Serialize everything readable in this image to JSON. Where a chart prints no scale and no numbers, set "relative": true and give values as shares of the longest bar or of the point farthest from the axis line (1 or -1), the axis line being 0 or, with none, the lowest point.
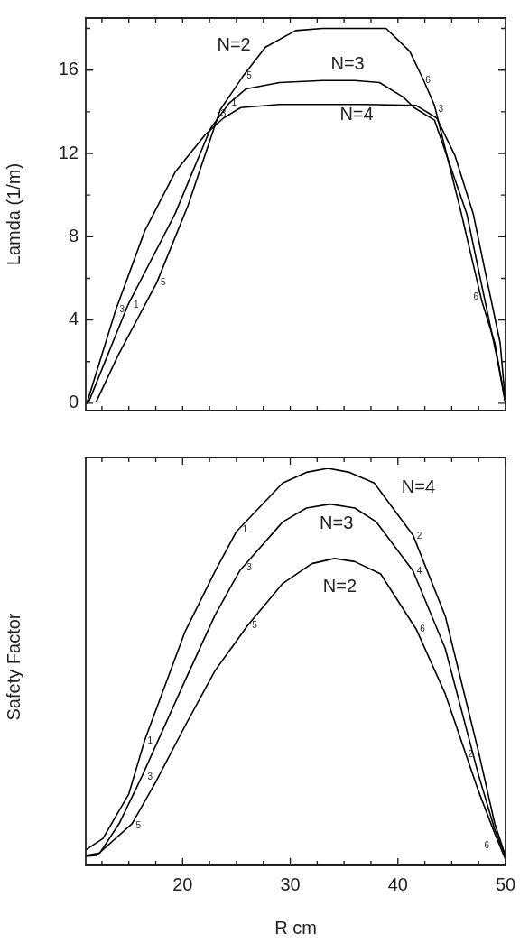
{
  "chart_data": [
    {
      "type": "line",
      "ylabel": "Lamda (1/m)",
      "xlim": [
        11,
        50
      ],
      "ylim": [
        -0.35,
        18.5
      ],
      "xticks": [
        {
          "value": 12.5,
          "label": null
        },
        {
          "value": 15,
          "label": null
        },
        {
          "value": 17.5,
          "label": null
        },
        {
          "value": 20,
          "label": null
        },
        {
          "value": 22.5,
          "label": null
        },
        {
          "value": 25,
          "label": null
        },
        {
          "value": 27.5,
          "label": null
        },
        {
          "value": 30,
          "label": null
        },
        {
          "value": 32.5,
          "label": null
        },
        {
          "value": 35,
          "label": null
        },
        {
          "value": 37.5,
          "label": null
        },
        {
          "value": 40,
          "label": null
        },
        {
          "value": 42.5,
          "label": null
        },
        {
          "value": 45,
          "label": null
        },
        {
          "value": 47.5,
          "label": null
        }
      ],
      "yticks": [
        0,
        {
          "value": 2,
          "label": null
        },
        4,
        {
          "value": 6,
          "label": null
        },
        8,
        {
          "value": 10,
          "label": null
        },
        12,
        {
          "value": 14,
          "label": null
        },
        16,
        {
          "value": 18,
          "label": null
        }
      ],
      "tick_labels": "y",
      "grid": false,
      "legend": false,
      "marker": "none",
      "line_style": "solid",
      "series": [
        {
          "name": "N=2",
          "color": "#000000",
          "x": [
            12,
            14,
            17.6,
            20.5,
            23.5,
            25.6,
            27.7,
            30.5,
            33,
            36,
            38.9,
            41.1,
            42.4,
            43.4,
            45.9,
            47.8,
            49,
            50
          ],
          "values": [
            0.1,
            2.3,
            5.8,
            9.5,
            14.1,
            15.7,
            17.1,
            17.9,
            18.0,
            18.0,
            18.0,
            16.9,
            15.5,
            14.3,
            9.1,
            4.9,
            2.9,
            0
          ]
        },
        {
          "name": "N=3",
          "color": "#000000",
          "x": [
            11.3,
            14.9,
            19.3,
            22.6,
            24.3,
            25.9,
            29,
            33,
            36,
            38.3,
            40.5,
            41.5,
            43.4,
            46.4,
            48.1,
            49.2,
            50
          ],
          "values": [
            0.1,
            4.7,
            9.1,
            13.2,
            14.4,
            15.1,
            15.4,
            15.5,
            15.5,
            15.4,
            14.7,
            14.2,
            13.6,
            9.1,
            4.9,
            2.2,
            0
          ]
        },
        {
          "name": "N=4",
          "color": "#000000",
          "x": [
            11.1,
            13.8,
            16.5,
            19.3,
            22.1,
            23.8,
            25.4,
            29,
            33,
            37,
            41.7,
            43.6,
            45.3,
            47,
            48.4,
            49.5,
            50
          ],
          "values": [
            0,
            4.5,
            8.3,
            11.1,
            12.9,
            13.7,
            14.2,
            14.35,
            14.35,
            14.35,
            14.3,
            13.7,
            11.9,
            9.1,
            5.6,
            2.9,
            0
          ]
        }
      ],
      "annotations": [
        {
          "text": "3",
          "x": 13.8,
          "y": 4.5
        },
        {
          "text": "1",
          "x": 15.1,
          "y": 4.7
        },
        {
          "text": "5",
          "x": 17.6,
          "y": 5.8
        },
        {
          "text": "3",
          "x": 23.2,
          "y": 13.9
        },
        {
          "text": "1",
          "x": 24.2,
          "y": 14.4
        },
        {
          "text": "5",
          "x": 25.6,
          "y": 15.7
        },
        {
          "text": "6",
          "x": 42.2,
          "y": 15.5
        },
        {
          "text": "3",
          "x": 43.4,
          "y": 14.1
        },
        {
          "text": "6",
          "x": 48.1,
          "y": 5.1
        }
      ]
    },
    {
      "type": "line",
      "ylabel": "Safety Factor",
      "xlabel": "R cm",
      "xlim": [
        11,
        50
      ],
      "relative": true,
      "xticks": [
        {
          "value": 12.5,
          "label": null
        },
        {
          "value": 15,
          "label": null
        },
        {
          "value": 17.5,
          "label": null
        },
        20,
        {
          "value": 22.5,
          "label": null
        },
        {
          "value": 25,
          "label": null
        },
        {
          "value": 27.5,
          "label": null
        },
        30,
        {
          "value": 32.5,
          "label": null
        },
        {
          "value": 35,
          "label": null
        },
        {
          "value": 37.5,
          "label": null
        },
        40,
        {
          "value": 42.5,
          "label": null
        },
        {
          "value": 45,
          "label": null
        },
        {
          "value": 47.5,
          "label": null
        },
        50
      ],
      "tick_labels": "x",
      "grid": false,
      "legend": false,
      "marker": "none",
      "line_style": "solid",
      "series": [
        {
          "name": "N=2",
          "color": "#000000",
          "x": [
            11,
            12,
            15.3,
            17.5,
            20.2,
            23,
            26,
            29.3,
            32,
            34.1,
            36,
            38.4,
            41.7,
            44.4,
            47.5,
            49,
            50
          ],
          "values": [
            0.023,
            0.025,
            0.105,
            0.21,
            0.35,
            0.49,
            0.603,
            0.71,
            0.76,
            0.773,
            0.765,
            0.734,
            0.595,
            0.432,
            0.186,
            0.08,
            0.015
          ]
        },
        {
          "name": "N=3",
          "color": "#000000",
          "x": [
            11,
            12.3,
            14.1,
            16.2,
            20.2,
            23,
            25.3,
            29.3,
            31.5,
            33.7,
            36,
            38,
            41.4,
            44.4,
            47.5,
            49,
            50
          ],
          "values": [
            0.025,
            0.031,
            0.105,
            0.223,
            0.464,
            0.63,
            0.742,
            0.865,
            0.9,
            0.91,
            0.9,
            0.865,
            0.742,
            0.546,
            0.227,
            0.09,
            0.023
          ]
        },
        {
          "name": "N=4",
          "color": "#000000",
          "x": [
            11,
            12.6,
            15,
            16.5,
            20.2,
            23,
            25,
            29.3,
            31.5,
            33.5,
            35.5,
            37.8,
            41.4,
            44.4,
            47.5,
            49,
            50
          ],
          "values": [
            0.039,
            0.068,
            0.18,
            0.317,
            0.587,
            0.74,
            0.841,
            0.963,
            0.99,
            1.0,
            0.99,
            0.963,
            0.832,
            0.628,
            0.285,
            0.105,
            0.023
          ]
        }
      ],
      "annotations": [
        {
          "text": "1",
          "x": 25.2,
          "y": 0.845
        },
        {
          "text": "3",
          "x": 25.6,
          "y": 0.75
        },
        {
          "text": "5",
          "x": 26.1,
          "y": 0.603
        },
        {
          "text": "2",
          "x": 41.4,
          "y": 0.83
        },
        {
          "text": "4",
          "x": 41.4,
          "y": 0.74
        },
        {
          "text": "6",
          "x": 41.7,
          "y": 0.595
        },
        {
          "text": "1",
          "x": 16.4,
          "y": 0.313
        },
        {
          "text": "3",
          "x": 16.4,
          "y": 0.223
        },
        {
          "text": "5",
          "x": 15.3,
          "y": 0.1
        },
        {
          "text": "2",
          "x": 47.6,
          "y": 0.28
        },
        {
          "text": "6",
          "x": 49.1,
          "y": 0.05
        }
      ]
    }
  ]
}
